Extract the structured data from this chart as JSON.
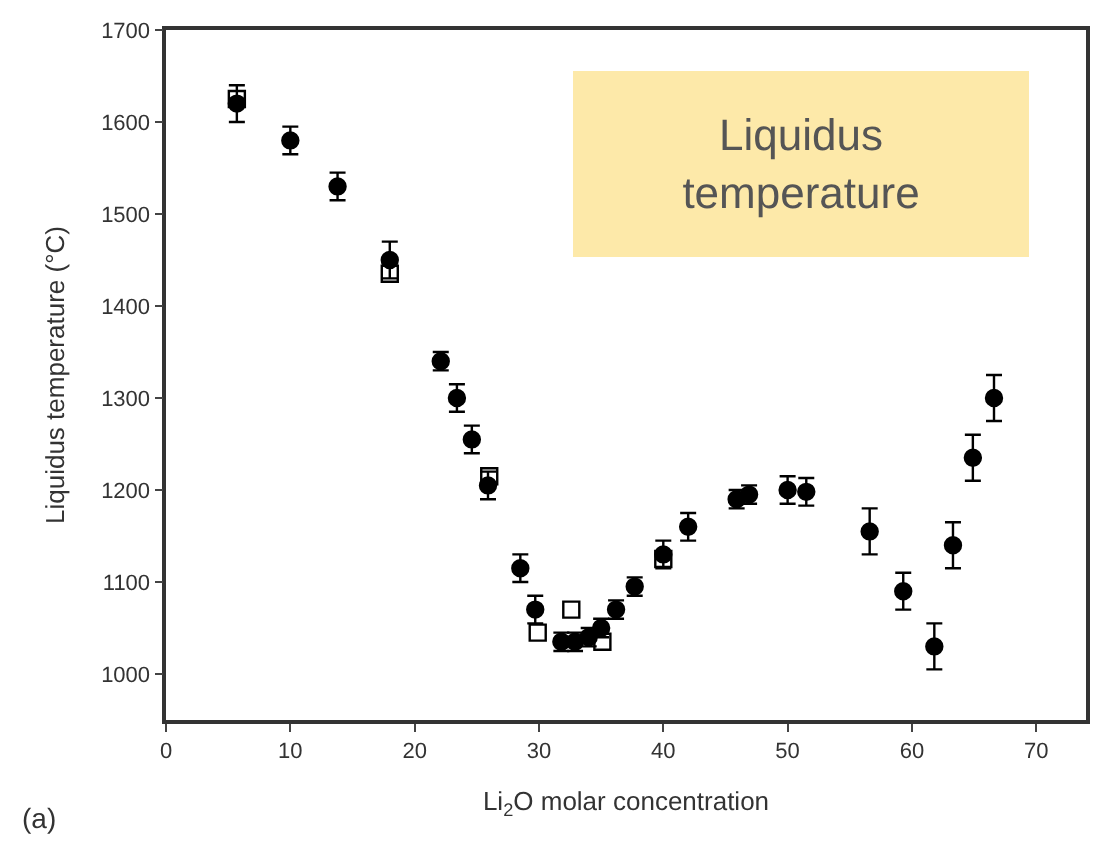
{
  "chart_data": {
    "type": "scatter",
    "xlabel": "Li$_{2}$O molar concentration",
    "ylabel": "Liquidus temperature (°C)",
    "annotations": [
      "Liquidus temperature",
      "(a)"
    ],
    "xlim": [
      0,
      74
    ],
    "xticks": [
      0,
      10,
      20,
      30,
      40,
      50,
      60,
      70
    ],
    "ylim": [
      950,
      1700
    ],
    "yticks": [
      1000,
      1100,
      1200,
      1300,
      1400,
      1500,
      1600,
      1700
    ],
    "series": [
      {
        "marker": "circle",
        "color": "#000000",
        "x": [
          5.7,
          10,
          13.8,
          18,
          22.1,
          23.4,
          24.6,
          25.9,
          28.5,
          29.7,
          31.8,
          32.9,
          34,
          35,
          36.2,
          37.7,
          40,
          42,
          45.9,
          46.9,
          50,
          51.5,
          56.6,
          59.3,
          61.8,
          63.3,
          64.9,
          66.6
        ],
        "values": [
          1620,
          1580,
          1530,
          1450,
          1340,
          1300,
          1255,
          1205,
          1115,
          1070,
          1035,
          1035,
          1040,
          1050,
          1070,
          1095,
          1130,
          1160,
          1190,
          1195,
          1200,
          1198,
          1155,
          1090,
          1030,
          1140,
          1235,
          1300
        ],
        "errors": [
          20,
          15,
          15,
          20,
          10,
          15,
          15,
          15,
          15,
          15,
          10,
          10,
          10,
          10,
          10,
          10,
          15,
          15,
          10,
          10,
          15,
          15,
          25,
          20,
          25,
          25,
          25,
          25
        ]
      },
      {
        "marker": "square",
        "color": "#000000",
        "x": [
          5.7,
          18,
          26,
          29.9,
          32.6,
          35.1,
          40
        ],
        "values": [
          1625,
          1435,
          1215,
          1045,
          1070,
          1035,
          1125
        ]
      }
    ]
  }
}
